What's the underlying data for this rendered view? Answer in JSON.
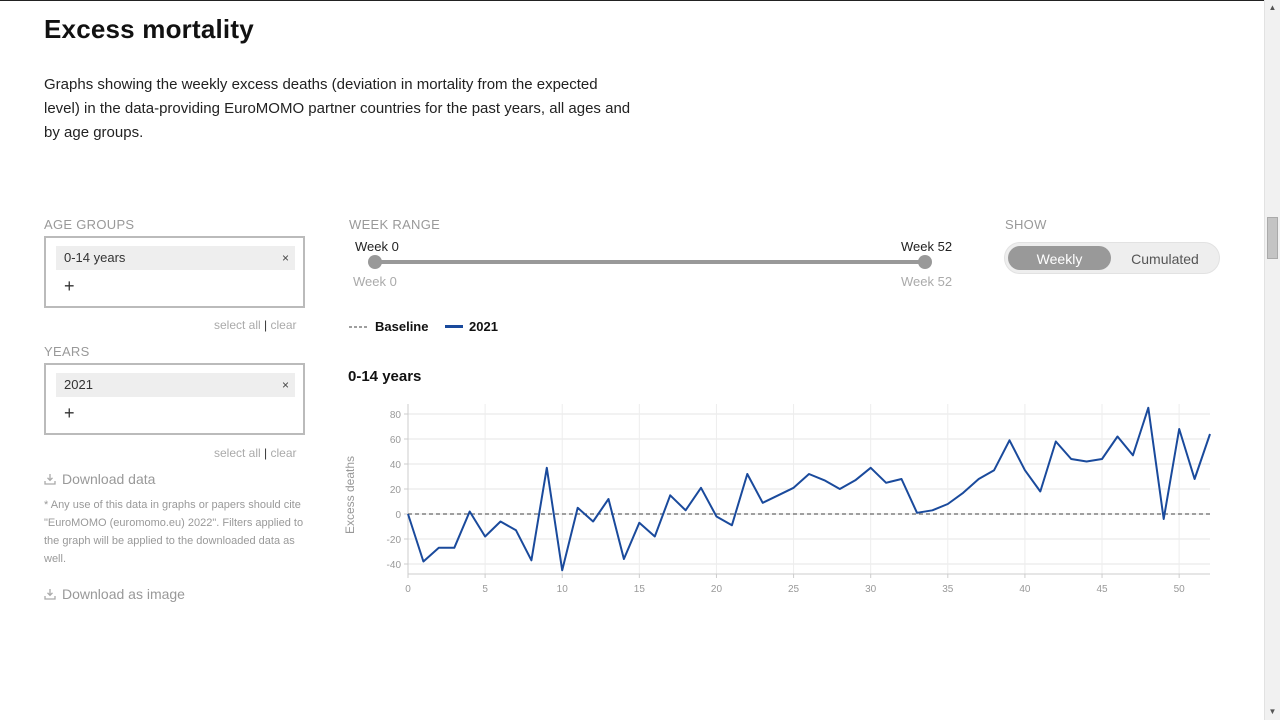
{
  "page": {
    "title": "Excess mortality",
    "intro": "Graphs showing the weekly excess deaths (deviation in mortality from the expected level) in the data-providing EuroMOMO partner countries for the past years, all ages and by age groups."
  },
  "filters": {
    "age_groups": {
      "label": "AGE GROUPS",
      "selected": "0-14 years",
      "remove": "×",
      "add": "+",
      "select_all": "select all",
      "separator": "|",
      "clear": "clear"
    },
    "years": {
      "label": "YEARS",
      "selected": "2021",
      "remove": "×",
      "add": "+",
      "select_all": "select all",
      "separator": "|",
      "clear": "clear"
    },
    "download_data": "Download data",
    "disclaimer": "* Any use of this data in graphs or papers should cite \"EuroMOMO (euromomo.eu) 2022\". Filters applied to the graph will be applied to the downloaded data as well.",
    "download_image": "Download as image",
    "download_icon": "download-icon"
  },
  "week_range": {
    "label": "WEEK RANGE",
    "start_label": "Week 0",
    "end_label": "Week 52",
    "min_label": "Week 0",
    "max_label": "Week 52",
    "start": 0,
    "end": 52
  },
  "show": {
    "label": "SHOW",
    "options": [
      "Weekly",
      "Cumulated"
    ],
    "selected": "Weekly"
  },
  "legend": {
    "baseline": "Baseline",
    "series": "2021"
  },
  "colors": {
    "series": "#1a4a9c",
    "baseline": "#666666",
    "muted": "#999999"
  },
  "chart_data": {
    "type": "line",
    "title": "0-14 years",
    "ylabel": "Excess deaths",
    "xlabel": "",
    "xlim": [
      0,
      52
    ],
    "ylim": [
      -48,
      88
    ],
    "x_ticks": [
      0,
      5,
      10,
      15,
      20,
      25,
      30,
      35,
      40,
      45,
      50
    ],
    "y_ticks": [
      -40,
      -20,
      0,
      20,
      40,
      60,
      80
    ],
    "grid": true,
    "series": [
      {
        "name": "2021",
        "x": [
          0,
          1,
          2,
          3,
          4,
          5,
          6,
          7,
          8,
          9,
          10,
          11,
          12,
          13,
          14,
          15,
          16,
          17,
          18,
          19,
          20,
          21,
          22,
          23,
          24,
          25,
          26,
          27,
          28,
          29,
          30,
          31,
          32,
          33,
          34,
          35,
          36,
          37,
          38,
          39,
          40,
          41,
          42,
          43,
          44,
          45,
          46,
          47,
          48,
          49,
          50,
          51,
          52
        ],
        "y": [
          0,
          -38,
          -27,
          -27,
          2,
          -18,
          -6,
          -13,
          -37,
          37,
          -45,
          5,
          -6,
          12,
          -36,
          -7,
          -18,
          15,
          3,
          21,
          -2,
          -9,
          32,
          9,
          15,
          21,
          32,
          27,
          20,
          27,
          37,
          25,
          28,
          1,
          3,
          8,
          17,
          28,
          35,
          59,
          35,
          18,
          58,
          44,
          42,
          44,
          62,
          47,
          85,
          -4,
          68,
          28,
          64
        ]
      },
      {
        "name": "Baseline",
        "x": [
          0,
          52
        ],
        "y": [
          0,
          0
        ]
      }
    ]
  }
}
